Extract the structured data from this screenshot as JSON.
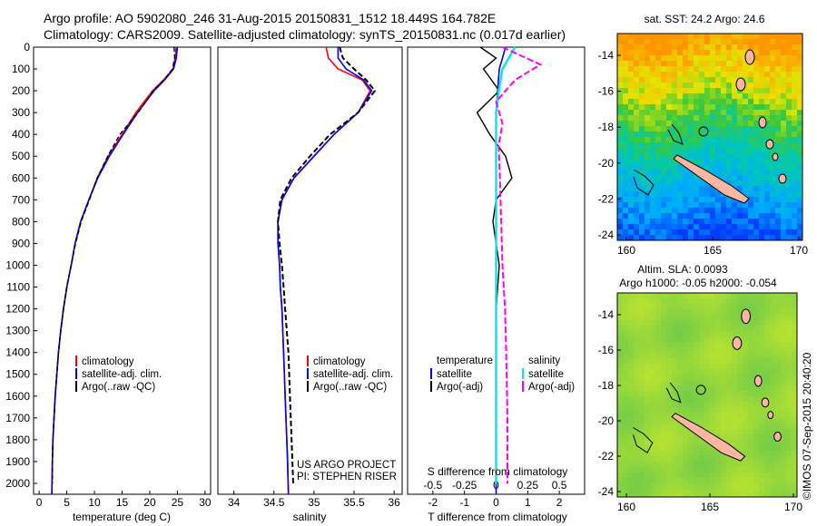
{
  "header": {
    "line1": "Argo profile: AO 5902080_246 31-Aug-2015 20150831_1512 18.449S 164.782E",
    "line2": "Climatology: CARS2009. Satellite-adjusted climatology: synTS_20150831.nc (0.017d earlier)"
  },
  "colors": {
    "climatology": "#ff0000",
    "satellite": "#0000ff",
    "argo": "#000000",
    "salinity_satellite": "#00e5ee",
    "salinity_argo": "#ff00ff",
    "land": "#ffb6a0"
  },
  "chart_data": [
    {
      "type": "line",
      "panel": "temperature",
      "xlabel": "temperature (deg C)",
      "ylim": [
        2050,
        0
      ],
      "xlim": [
        -1,
        31
      ],
      "xticks": [
        "0",
        "5",
        "10",
        "15",
        "20",
        "25",
        "30"
      ],
      "yticks": [
        "0",
        "100",
        "200",
        "300",
        "400",
        "500",
        "600",
        "700",
        "800",
        "900",
        "1000",
        "1100",
        "1200",
        "1300",
        "1400",
        "1500",
        "1600",
        "1700",
        "1800",
        "1900",
        "2000"
      ],
      "series": [
        {
          "name": "climatology",
          "x": [
            24.8,
            24.6,
            24.2,
            22.5,
            20.5,
            17.5,
            15.0,
            12.5,
            10.5,
            9.0,
            7.5,
            6.5,
            5.8,
            5.0,
            4.4,
            3.9,
            3.5,
            3.2,
            2.9,
            2.7,
            2.5,
            2.4,
            2.3
          ],
          "y": [
            0,
            50,
            100,
            150,
            200,
            300,
            400,
            500,
            600,
            700,
            800,
            900,
            1000,
            1100,
            1200,
            1300,
            1400,
            1500,
            1600,
            1700,
            1800,
            1900,
            2050
          ]
        },
        {
          "name": "satellite-adj. clim.",
          "x": [
            25.0,
            24.8,
            24.3,
            22.7,
            20.8,
            17.8,
            15.2,
            12.7,
            10.6,
            9.0,
            7.5,
            6.5,
            5.8,
            5.0,
            4.4,
            3.9,
            3.5,
            3.2,
            2.9,
            2.7,
            2.5,
            2.4,
            2.3
          ],
          "y": [
            0,
            50,
            100,
            150,
            200,
            300,
            400,
            500,
            600,
            700,
            800,
            900,
            1000,
            1100,
            1200,
            1300,
            1400,
            1500,
            1600,
            1700,
            1800,
            1900,
            2050
          ]
        },
        {
          "name": "Argo(..raw -QC)",
          "x": [
            24.4,
            24.5,
            24.1,
            22.6,
            20.6,
            17.9,
            14.6,
            12.4,
            10.5,
            9.1,
            7.6,
            6.6,
            5.8,
            5.0,
            4.4,
            3.9,
            3.5,
            3.2,
            2.9,
            2.7,
            2.5,
            2.4,
            2.4
          ],
          "y": [
            0,
            50,
            100,
            150,
            200,
            300,
            400,
            500,
            600,
            700,
            800,
            900,
            1000,
            1100,
            1200,
            1300,
            1400,
            1500,
            1600,
            1700,
            1800,
            1900,
            2000
          ]
        }
      ]
    },
    {
      "type": "line",
      "panel": "salinity",
      "xlabel": "salinity",
      "ylim": [
        2050,
        0
      ],
      "xlim": [
        33.8,
        36.1
      ],
      "xticks": [
        "34",
        "34.5",
        "35",
        "35.5",
        "36"
      ],
      "series": [
        {
          "name": "climatology",
          "x": [
            35.15,
            35.18,
            35.3,
            35.6,
            35.7,
            35.55,
            35.25,
            35.0,
            34.75,
            34.6,
            34.55,
            34.55,
            34.57,
            34.58,
            34.6,
            34.61,
            34.62,
            34.63,
            34.64,
            34.65,
            34.66,
            34.67,
            34.68
          ],
          "y": [
            0,
            50,
            100,
            150,
            200,
            300,
            400,
            500,
            600,
            700,
            800,
            900,
            1000,
            1100,
            1200,
            1300,
            1400,
            1500,
            1600,
            1700,
            1800,
            1900,
            2050
          ]
        },
        {
          "name": "satellite-adj. clim.",
          "x": [
            35.3,
            35.3,
            35.4,
            35.62,
            35.72,
            35.55,
            35.25,
            35.0,
            34.75,
            34.6,
            34.55,
            34.55,
            34.57,
            34.58,
            34.6,
            34.61,
            34.62,
            34.63,
            34.64,
            34.65,
            34.66,
            34.67,
            34.68
          ],
          "y": [
            0,
            50,
            100,
            150,
            200,
            300,
            400,
            500,
            600,
            700,
            800,
            900,
            1000,
            1100,
            1200,
            1300,
            1400,
            1500,
            1600,
            1700,
            1800,
            1900,
            2050
          ]
        },
        {
          "name": "Argo(..raw -QC)",
          "x": [
            35.32,
            35.36,
            35.5,
            35.65,
            35.76,
            35.55,
            35.2,
            34.95,
            34.72,
            34.58,
            34.55,
            34.57,
            34.6,
            34.62,
            34.64,
            34.66,
            34.68,
            34.69,
            34.7,
            34.71,
            34.72,
            34.73,
            34.74
          ],
          "y": [
            0,
            50,
            100,
            150,
            200,
            300,
            400,
            500,
            600,
            700,
            800,
            900,
            1000,
            1100,
            1200,
            1300,
            1400,
            1500,
            1600,
            1700,
            1800,
            1900,
            2000
          ]
        }
      ]
    },
    {
      "type": "line",
      "panel": "difference",
      "xlabel_top": "S difference from climatology",
      "xlabel": "T difference from climatology",
      "ylim": [
        2050,
        0
      ],
      "xticks_top": [
        "-0.5",
        "-0.25",
        "0",
        "0.25",
        "0.5"
      ],
      "xticks": [
        "-2",
        "-1",
        "0",
        "1",
        "2"
      ],
      "xlim": [
        -2.8,
        2.8
      ],
      "series": [
        {
          "name": "temperature satellite",
          "x": [
            0.3,
            0.2,
            0.1,
            0.05,
            0.0,
            0.0,
            0.0,
            0.0,
            0.0,
            0.0,
            0.0,
            0.0,
            0.0,
            0.0,
            0.0,
            0.0
          ],
          "y": [
            0,
            50,
            100,
            200,
            300,
            400,
            600,
            800,
            1000,
            1200,
            1400,
            1600,
            1800,
            1900,
            2000,
            2050
          ]
        },
        {
          "name": "temperature Argo(-adj)",
          "x": [
            -0.5,
            0.0,
            -0.4,
            0.1,
            -0.6,
            -0.2,
            0.3,
            0.5,
            0.0,
            -0.1,
            0.1,
            0.0,
            0.0,
            0.0,
            0.0,
            0.0
          ],
          "y": [
            0,
            50,
            100,
            200,
            300,
            400,
            500,
            600,
            700,
            800,
            1000,
            1200,
            1400,
            1600,
            1800,
            2000
          ]
        },
        {
          "name": "salinity satellite",
          "x": [
            0.15,
            0.1,
            0.05,
            0.02,
            0.0,
            0.0,
            0.0,
            0.0,
            0.0,
            0.0,
            0.0
          ],
          "y": [
            0,
            50,
            100,
            200,
            300,
            400,
            600,
            800,
            1200,
            1600,
            2000
          ]
        },
        {
          "name": "salinity Argo(-adj)",
          "x": [
            0.05,
            0.35,
            0.15,
            0.0,
            0.05,
            0.02,
            0.03,
            0.04,
            0.05,
            0.07,
            0.08,
            0.09,
            0.09
          ],
          "y": [
            0,
            80,
            150,
            250,
            350,
            450,
            600,
            800,
            1000,
            1200,
            1400,
            1700,
            2000
          ]
        }
      ]
    }
  ],
  "legends": {
    "profile": [
      "climatology",
      "satellite-adj. clim.",
      "Argo(..raw -QC)"
    ],
    "diff_temperature": {
      "title": "temperature",
      "items": [
        "satellite",
        "Argo(-adj)"
      ]
    },
    "diff_salinity": {
      "title": "salinity",
      "items": [
        "satellite",
        "Argo(-adj)"
      ]
    }
  },
  "project": {
    "line1": "US ARGO PROJECT",
    "line2": "PI: STEPHEN RISER"
  },
  "sst_map": {
    "title": "sat. SST: 24.2  Argo: 24.6",
    "yticks": [
      "-14",
      "-16",
      "-18",
      "-20",
      "-22",
      "-24"
    ],
    "xticks": [
      "160",
      "165",
      "170"
    ]
  },
  "sla_map": {
    "title1": "Altim. SLA: 0.0093",
    "title2": "Argo h1000: -0.05 h2000: -0.054",
    "yticks": [
      "-14",
      "-16",
      "-18",
      "-20",
      "-22",
      "-24"
    ],
    "xticks": [
      "160",
      "165",
      "170"
    ]
  },
  "credit": "©IMOS 07-Sep-2015 20:40:20"
}
